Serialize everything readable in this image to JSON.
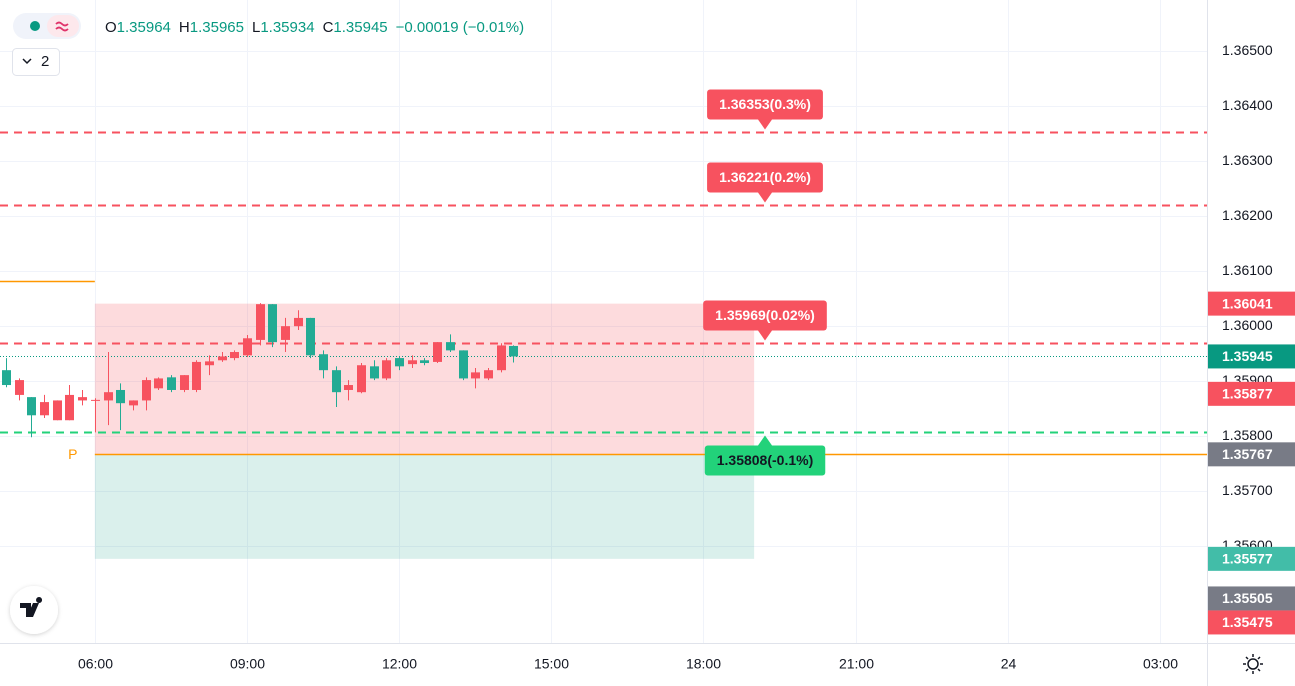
{
  "chart_data": {
    "type": "candlestick",
    "legend": {
      "items": [
        {
          "label": "O",
          "value": "1.35964"
        },
        {
          "label": "H",
          "value": "1.35965"
        },
        {
          "label": "L",
          "value": "1.35934"
        },
        {
          "label": "C",
          "value": "1.35945"
        }
      ],
      "change": "−0.00019 (−0.01%)"
    },
    "indicator_count": "2",
    "x": [
      4.25,
      4.5,
      4.75,
      5,
      5.25,
      5.5,
      5.75,
      6,
      6.25,
      6.5,
      6.75,
      7,
      7.25,
      7.5,
      7.75,
      8,
      8.25,
      8.5,
      8.75,
      9,
      9.25,
      9.5,
      9.75,
      10,
      10.25,
      10.5,
      10.75,
      11,
      11.25,
      11.5,
      11.75,
      12,
      12.25,
      12.5,
      12.75,
      13,
      13.25,
      13.5,
      13.75,
      14,
      14.25
    ],
    "open": [
      1.3592,
      1.35875,
      1.35871,
      1.35838,
      1.35829,
      1.35829,
      1.35865,
      1.35865,
      1.35865,
      1.35884,
      1.35856,
      1.35865,
      1.35887,
      1.35907,
      1.35884,
      1.35884,
      1.35929,
      1.35938,
      1.35942,
      1.35947,
      1.35975,
      1.3604,
      1.35975,
      1.36,
      1.36015,
      1.35949,
      1.3592,
      1.35884,
      1.3588,
      1.35927,
      1.35905,
      1.35942,
      1.35931,
      1.35938,
      1.35935,
      1.35971,
      1.35956,
      1.35905,
      1.35905,
      1.3592,
      1.35964
    ],
    "high": [
      1.35942,
      1.35905,
      1.35871,
      1.35875,
      1.35865,
      1.35893,
      1.35884,
      1.35869,
      1.35953,
      1.35896,
      1.35865,
      1.35907,
      1.35907,
      1.35911,
      1.35911,
      1.35938,
      1.35947,
      1.35953,
      1.35956,
      1.35984,
      1.36042,
      1.3604,
      1.36015,
      1.36029,
      1.36015,
      1.35956,
      1.35927,
      1.35902,
      1.35933,
      1.35938,
      1.35942,
      1.35945,
      1.35947,
      1.35942,
      1.35971,
      1.35985,
      1.35956,
      1.35924,
      1.35924,
      1.35969,
      1.35965
    ],
    "low": [
      1.35889,
      1.35865,
      1.35798,
      1.35833,
      1.35829,
      1.35829,
      1.35856,
      1.35807,
      1.3582,
      1.35811,
      1.35847,
      1.35847,
      1.35884,
      1.3588,
      1.3588,
      1.3588,
      1.35911,
      1.35935,
      1.35938,
      1.35944,
      1.35965,
      1.35962,
      1.35953,
      1.35993,
      1.35942,
      1.35905,
      1.35853,
      1.35865,
      1.35878,
      1.35902,
      1.35902,
      1.3592,
      1.35924,
      1.35929,
      1.35933,
      1.35953,
      1.35902,
      1.35887,
      1.35902,
      1.35916,
      1.35934
    ],
    "close": [
      1.35893,
      1.35902,
      1.35838,
      1.35862,
      1.35865,
      1.35875,
      1.35871,
      1.35866,
      1.3588,
      1.3586,
      1.35865,
      1.35902,
      1.35905,
      1.35884,
      1.35911,
      1.35935,
      1.35936,
      1.35945,
      1.35953,
      1.35978,
      1.3604,
      1.35971,
      1.36,
      1.36015,
      1.35947,
      1.3592,
      1.3588,
      1.35893,
      1.35929,
      1.35905,
      1.35938,
      1.35927,
      1.35938,
      1.35933,
      1.35971,
      1.35956,
      1.35905,
      1.35916,
      1.3592,
      1.35965,
      1.35945
    ],
    "up_color": "#f7525f",
    "down_color": "#22ab94",
    "xlim": [
      4.13,
      27.93
    ],
    "ylim": [
      1.35424,
      1.36593
    ],
    "xticks": [
      {
        "value": 6,
        "label": "06:00"
      },
      {
        "value": 9,
        "label": "09:00"
      },
      {
        "value": 12,
        "label": "12:00"
      },
      {
        "value": 15,
        "label": "15:00"
      },
      {
        "value": 18,
        "label": "18:00"
      },
      {
        "value": 21,
        "label": "21:00"
      },
      24,
      {
        "value": 27,
        "label": "03:00"
      }
    ],
    "yticks": [
      {
        "value": 1.365,
        "label": "1.36500"
      },
      {
        "value": 1.364,
        "label": "1.36400"
      },
      {
        "value": 1.363,
        "label": "1.36300"
      },
      {
        "value": 1.362,
        "label": "1.36200"
      },
      {
        "value": 1.361,
        "label": "1.36100"
      },
      {
        "value": 1.36,
        "label": "1.36000"
      },
      {
        "value": 1.359,
        "label": "1.35900"
      },
      {
        "value": 1.358,
        "label": "1.35800"
      },
      {
        "value": 1.357,
        "label": "1.35700"
      },
      {
        "value": 1.356,
        "label": "1.35600"
      }
    ],
    "grid": true,
    "position": {
      "entry": 1.35767,
      "stop": 1.36041,
      "target": 1.35577,
      "from": 6,
      "to": 19
    },
    "pivots": [
      {
        "value": 1.36082,
        "to": 6
      },
      {
        "value": 1.35767,
        "from": 6,
        "label": "P"
      }
    ],
    "pivot_color": "#ff9800",
    "alerts": [
      {
        "value": 1.36353,
        "label": "1.36353(0.3%)",
        "color": "#f7525f"
      },
      {
        "value": 1.36221,
        "label": "1.36221(0.2%)",
        "color": "#f7525f"
      },
      {
        "value": 1.35969,
        "label": "1.35969(0.02%)",
        "color": "#f7525f"
      },
      {
        "value": 1.35808,
        "label": "1.35808(-0.1%)",
        "color": "#22d27a"
      }
    ],
    "price_tags": [
      {
        "value": 1.36041,
        "color": "#f7525f"
      },
      {
        "value": 1.35945,
        "color": "#089981"
      },
      {
        "value": 1.35877,
        "color": "#f7525f"
      },
      {
        "value": 1.35767,
        "color": "#787b86"
      },
      {
        "value": 1.35577,
        "color": "#42bda8"
      },
      {
        "value": 1.35505,
        "color": "#787b86"
      },
      {
        "value": 1.35475,
        "color": "#f7525f"
      }
    ]
  }
}
